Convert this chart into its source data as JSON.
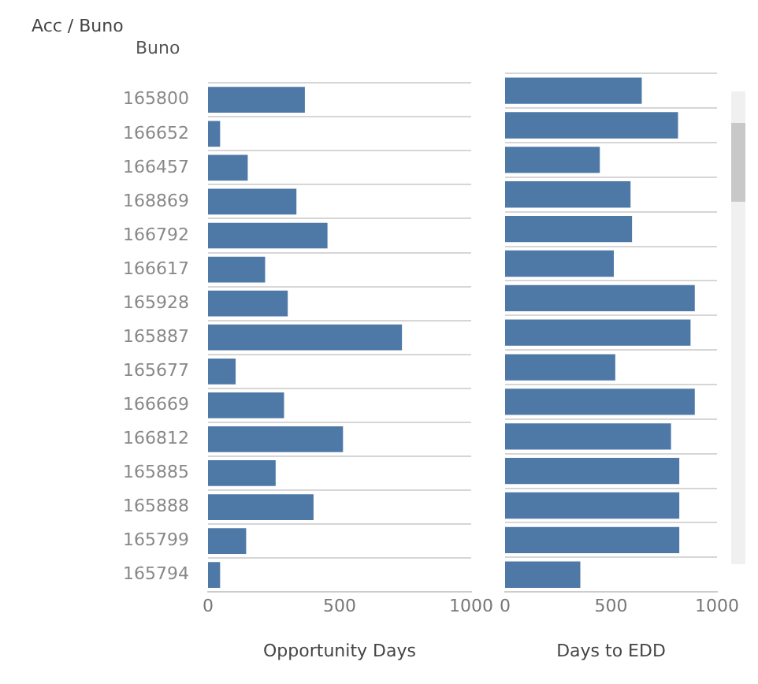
{
  "chart_data": [
    {
      "type": "bar",
      "title": "Acc / Buno",
      "ylabel": "Buno",
      "xlabel": "Opportunity Days",
      "orientation": "horizontal",
      "categories": [
        "165800",
        "166652",
        "166457",
        "168869",
        "166792",
        "166617",
        "165928",
        "165887",
        "165677",
        "166669",
        "166812",
        "165885",
        "165888",
        "165799",
        "165794"
      ],
      "values": [
        368,
        46,
        151,
        336,
        454,
        217,
        303,
        737,
        105,
        289,
        513,
        257,
        401,
        145,
        46
      ],
      "color": "#4e79a7",
      "xlim": [
        0,
        1000
      ],
      "xticks": [
        0,
        500,
        1000
      ],
      "grid": "y"
    },
    {
      "type": "bar",
      "xlabel": "Days to EDD",
      "orientation": "horizontal",
      "tick_labels": "x",
      "categories": [
        "165800",
        "166652",
        "166457",
        "168869",
        "166792",
        "166617",
        "165928",
        "165887",
        "165677",
        "166669",
        "166812",
        "165885",
        "165888",
        "165799",
        "165794"
      ],
      "values": [
        645,
        816,
        447,
        592,
        599,
        513,
        895,
        875,
        520,
        895,
        783,
        822,
        822,
        822,
        355
      ],
      "color": "#4e79a7",
      "xlim": [
        0,
        1000
      ],
      "xticks": [
        0,
        500,
        1000
      ],
      "grid": "y"
    }
  ]
}
